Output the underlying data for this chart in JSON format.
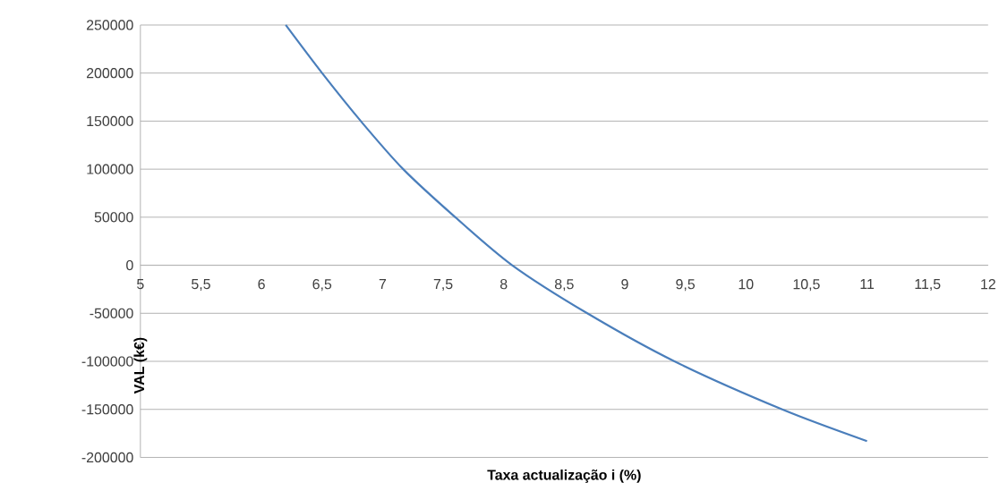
{
  "chart_data": {
    "type": "line",
    "xlabel": "Taxa actualização i (%)",
    "ylabel": "VAL (k€)",
    "series": [
      {
        "color": "#4a7ebb",
        "x": [
          6.2,
          6.5,
          6.82,
          7.17,
          7.6,
          8.07,
          8.69,
          9.41,
          10.3,
          11
        ],
        "values": [
          250000,
          200000,
          150000,
          100000,
          50000,
          0,
          -50000,
          -100000,
          -150000,
          -183000
        ]
      }
    ],
    "xlim": [
      5,
      12
    ],
    "ylim": [
      -200000,
      250000
    ],
    "xticks": [
      5,
      {
        "value": 5.5,
        "label": "5,5"
      },
      6,
      {
        "value": 6.5,
        "label": "6,5"
      },
      7,
      {
        "value": 7.5,
        "label": "7,5"
      },
      8,
      {
        "value": 8.5,
        "label": "8,5"
      },
      9,
      {
        "value": 9.5,
        "label": "9,5"
      },
      10,
      {
        "value": 10.5,
        "label": "10,5"
      },
      11,
      {
        "value": 11.5,
        "label": "11,5"
      },
      12
    ],
    "yticks": [
      -200000,
      -150000,
      -100000,
      -50000,
      0,
      50000,
      100000,
      150000,
      200000,
      250000
    ],
    "grid": "y",
    "marker": "none",
    "line_style": "solid"
  }
}
